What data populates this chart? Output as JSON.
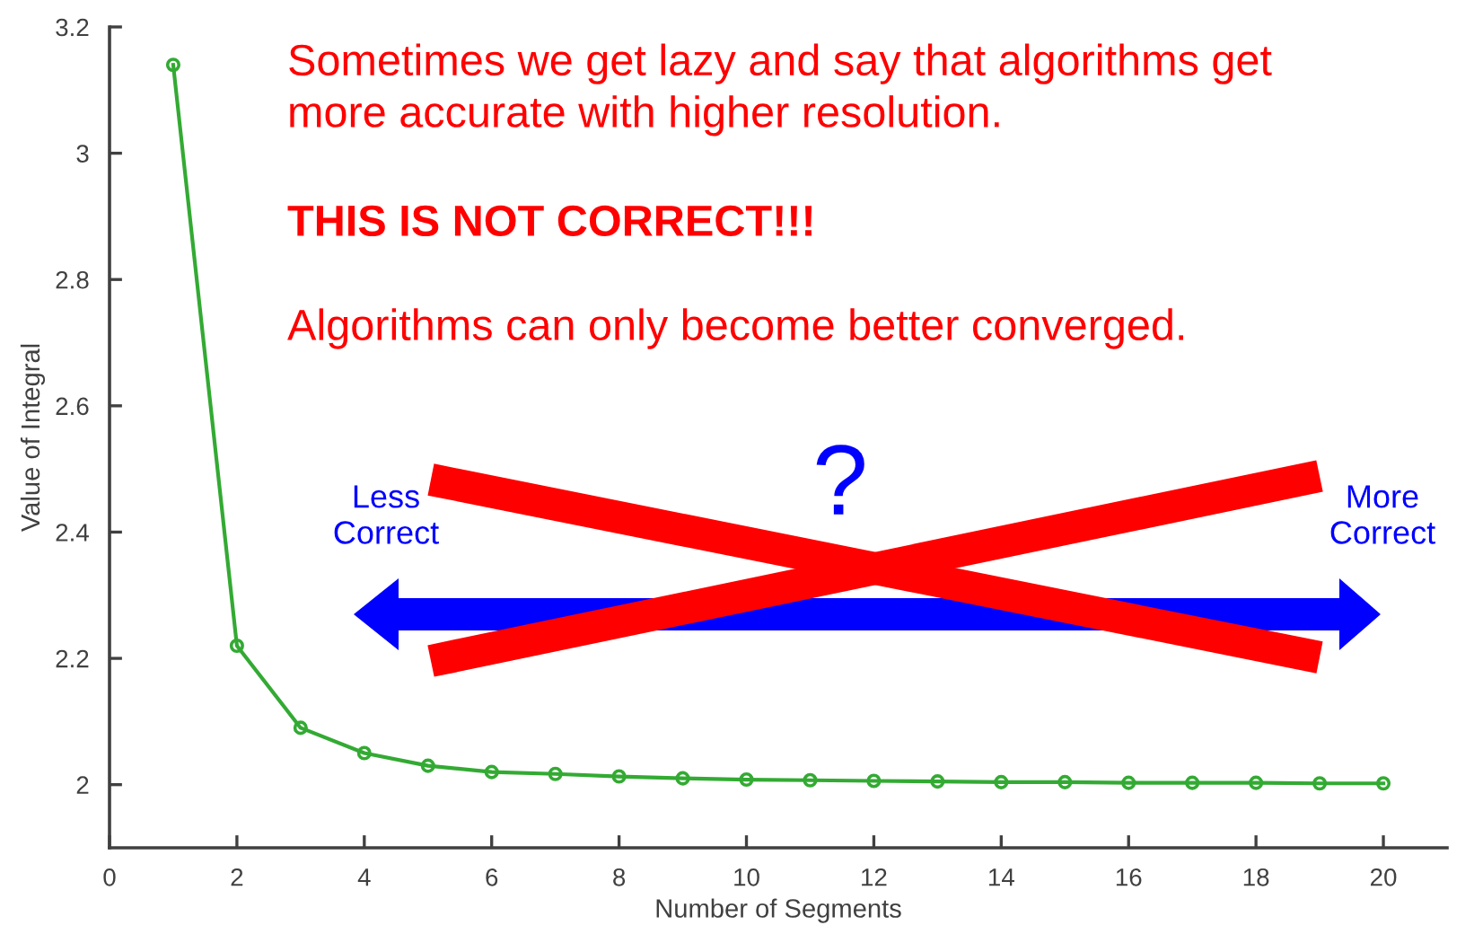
{
  "chart_data": {
    "type": "line",
    "xlabel": "Number of Segments",
    "ylabel": "Value of Integral",
    "x": [
      1,
      2,
      3,
      4,
      5,
      6,
      7,
      8,
      9,
      10,
      11,
      12,
      13,
      14,
      15,
      16,
      17,
      18,
      19,
      20
    ],
    "series": [
      {
        "color": "#33aa33",
        "values": [
          3.14,
          2.22,
          2.09,
          2.05,
          2.03,
          2.02,
          2.017,
          2.013,
          2.01,
          2.008,
          2.007,
          2.006,
          2.005,
          2.004,
          2.004,
          2.003,
          2.003,
          2.003,
          2.002,
          2.002
        ]
      }
    ],
    "xlim": [
      0,
      21
    ],
    "ylim": [
      1.9,
      3.2
    ],
    "xticks": [
      0,
      2,
      4,
      6,
      8,
      10,
      12,
      14,
      16,
      18,
      20
    ],
    "yticks": [
      2,
      2.2,
      2.4,
      2.6,
      2.8,
      3,
      3.2
    ],
    "marker": "circle",
    "line_style": "solid",
    "grid": false,
    "annotations": [
      "Sometimes we get lazy and say that algorithms get\nmore accurate with higher resolution.",
      "THIS IS NOT CORRECT!!!",
      "Algorithms can only become better converged.",
      "Less\nCorrect",
      "?",
      "More\nCorrect"
    ]
  }
}
